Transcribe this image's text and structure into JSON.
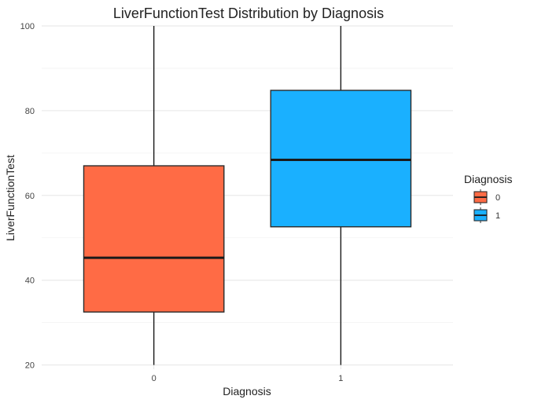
{
  "chart_data": {
    "type": "boxplot",
    "title": "LiverFunctionTest Distribution by Diagnosis",
    "xlabel": "Diagnosis",
    "ylabel": "LiverFunctionTest",
    "ylim": [
      19,
      100
    ],
    "y_ticks": [
      20,
      40,
      60,
      80,
      100
    ],
    "grid": true,
    "legend": {
      "title": "Diagnosis",
      "placement": "right"
    },
    "categories": [
      "0",
      "1"
    ],
    "series": [
      {
        "name": "0",
        "color": "#FF6B45",
        "min": 20,
        "q1": 32.5,
        "median": 45.3,
        "q3": 67,
        "max": 100
      },
      {
        "name": "1",
        "color": "#1AB0FF",
        "min": 20,
        "q1": 52.6,
        "median": 68.4,
        "q3": 84.8,
        "max": 100
      }
    ]
  }
}
